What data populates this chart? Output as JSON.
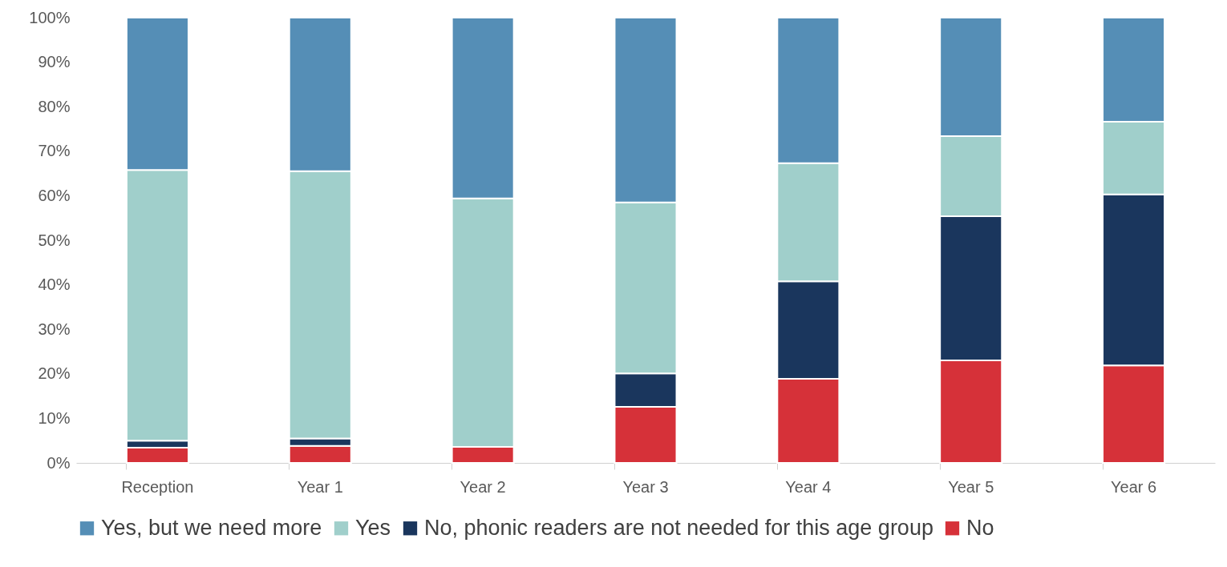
{
  "chart_data": {
    "type": "bar",
    "stacked": true,
    "legend": "bottom",
    "grid": false,
    "categories": [
      "Reception",
      "Year 1",
      "Year 2",
      "Year 3",
      "Year 4",
      "Year 5",
      "Year 6"
    ],
    "series": [
      {
        "name": "No",
        "color": "#d63139",
        "values": [
          3.4,
          3.8,
          3.6,
          12.6,
          18.9,
          23.0,
          21.9
        ]
      },
      {
        "name": "No, phonic readers are not needed for this age group",
        "color": "#1a365d",
        "values": [
          1.6,
          1.7,
          0,
          7.5,
          21.9,
          32.4,
          38.4
        ]
      },
      {
        "name": "Yes",
        "color": "#a0cfcb",
        "values": [
          60.8,
          60.0,
          55.8,
          38.4,
          26.5,
          18.0,
          16.3
        ]
      },
      {
        "name": "Yes, but we need more",
        "color": "#558eb6",
        "values": [
          34.2,
          34.5,
          40.6,
          41.5,
          32.7,
          26.6,
          23.4
        ]
      }
    ],
    "ylim": [
      0,
      100
    ],
    "yticks": [
      {
        "value": 0,
        "label": "0%"
      },
      {
        "value": 10,
        "label": "10%"
      },
      {
        "value": 20,
        "label": "20%"
      },
      {
        "value": 30,
        "label": "30%"
      },
      {
        "value": 40,
        "label": "40%"
      },
      {
        "value": 50,
        "label": "50%"
      },
      {
        "value": 60,
        "label": "60%"
      },
      {
        "value": 70,
        "label": "70%"
      },
      {
        "value": 80,
        "label": "80%"
      },
      {
        "value": 90,
        "label": "90%"
      },
      {
        "value": 100,
        "label": "100%"
      }
    ]
  }
}
